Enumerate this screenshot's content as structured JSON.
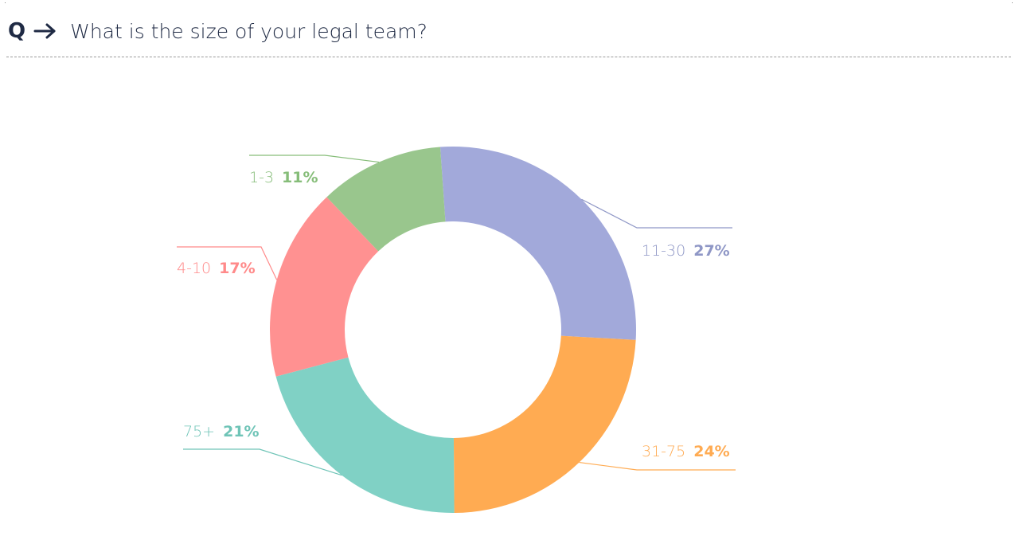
{
  "question": {
    "prefix": "Q",
    "text": "What is the size of your legal team?"
  },
  "icons": {
    "arrow": "arrow-right-icon"
  },
  "colors": {
    "text_dark": "#1f2a44",
    "divider": "#9a9a9a"
  },
  "chart_data": {
    "type": "pie",
    "donut": true,
    "categories": [
      "11-30",
      "31-75",
      "75+",
      "4-10",
      "1-3"
    ],
    "values": [
      27,
      24,
      21,
      17,
      11
    ],
    "value_labels": [
      "27%",
      "24%",
      "21%",
      "17%",
      "11%"
    ],
    "colors": [
      "#a2a9da",
      "#ffab52",
      "#80d1c5",
      "#ff9191",
      "#99c68d"
    ],
    "label_colors": [
      "#8f97c6",
      "#ffab52",
      "#6fc4b7",
      "#ff8a8a",
      "#86bd79"
    ],
    "title": "",
    "legend": "none"
  }
}
